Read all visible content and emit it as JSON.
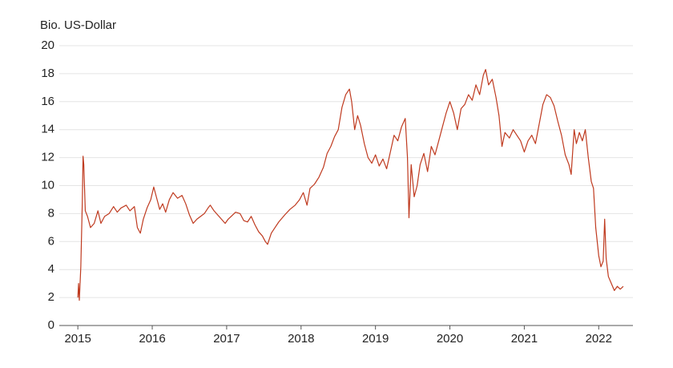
{
  "chart_data": {
    "type": "line",
    "y_axis_label": "Bio. US-Dollar",
    "x": [
      2015.0,
      2015.01,
      2015.02,
      2015.04,
      2015.06,
      2015.07,
      2015.08,
      2015.1,
      2015.13,
      2015.17,
      2015.22,
      2015.27,
      2015.31,
      2015.36,
      2015.42,
      2015.48,
      2015.53,
      2015.58,
      2015.65,
      2015.7,
      2015.76,
      2015.8,
      2015.84,
      2015.88,
      2015.93,
      2015.98,
      2016.02,
      2016.05,
      2016.1,
      2016.14,
      2016.18,
      2016.23,
      2016.28,
      2016.34,
      2016.4,
      2016.45,
      2016.5,
      2016.55,
      2016.6,
      2016.65,
      2016.7,
      2016.75,
      2016.78,
      2016.83,
      2016.88,
      2016.93,
      2016.98,
      2017.02,
      2017.08,
      2017.12,
      2017.18,
      2017.23,
      2017.28,
      2017.33,
      2017.38,
      2017.43,
      2017.48,
      2017.52,
      2017.55,
      2017.6,
      2017.65,
      2017.7,
      2017.78,
      2017.85,
      2017.92,
      2017.98,
      2018.03,
      2018.08,
      2018.12,
      2018.18,
      2018.24,
      2018.3,
      2018.35,
      2018.4,
      2018.45,
      2018.5,
      2018.55,
      2018.6,
      2018.65,
      2018.68,
      2018.72,
      2018.76,
      2018.8,
      2018.85,
      2018.9,
      2018.95,
      2019.0,
      2019.05,
      2019.1,
      2019.15,
      2019.2,
      2019.25,
      2019.3,
      2019.35,
      2019.4,
      2019.43,
      2019.45,
      2019.48,
      2019.52,
      2019.56,
      2019.6,
      2019.65,
      2019.7,
      2019.75,
      2019.8,
      2019.85,
      2019.9,
      2019.95,
      2020.0,
      2020.05,
      2020.1,
      2020.15,
      2020.2,
      2020.25,
      2020.3,
      2020.35,
      2020.4,
      2020.45,
      2020.48,
      2020.52,
      2020.57,
      2020.62,
      2020.66,
      2020.7,
      2020.74,
      2020.8,
      2020.85,
      2020.9,
      2020.95,
      2021.0,
      2021.05,
      2021.1,
      2021.15,
      2021.2,
      2021.25,
      2021.3,
      2021.35,
      2021.4,
      2021.45,
      2021.5,
      2021.55,
      2021.6,
      2021.63,
      2021.67,
      2021.7,
      2021.74,
      2021.78,
      2021.82,
      2021.86,
      2021.9,
      2021.93,
      2021.96,
      2022.0,
      2022.03,
      2022.06,
      2022.08,
      2022.1,
      2022.13,
      2022.17,
      2022.21,
      2022.25,
      2022.29,
      2022.33
    ],
    "series": [
      {
        "name": "Bio. US-Dollar",
        "color": "#bf3a1f",
        "values": [
          2.0,
          3.0,
          1.8,
          4.2,
          8.8,
          12.1,
          11.5,
          8.2,
          7.8,
          7.0,
          7.3,
          8.2,
          7.3,
          7.8,
          8.0,
          8.5,
          8.1,
          8.4,
          8.6,
          8.2,
          8.5,
          7.0,
          6.6,
          7.6,
          8.4,
          9.0,
          9.9,
          9.3,
          8.3,
          8.7,
          8.1,
          9.0,
          9.5,
          9.1,
          9.3,
          8.7,
          7.9,
          7.3,
          7.6,
          7.8,
          8.0,
          8.4,
          8.6,
          8.2,
          7.9,
          7.6,
          7.3,
          7.6,
          7.9,
          8.1,
          8.0,
          7.5,
          7.4,
          7.8,
          7.2,
          6.7,
          6.4,
          6.0,
          5.8,
          6.6,
          7.0,
          7.4,
          7.9,
          8.3,
          8.6,
          9.0,
          9.5,
          8.6,
          9.8,
          10.1,
          10.6,
          11.3,
          12.3,
          12.8,
          13.5,
          14.0,
          15.6,
          16.5,
          16.9,
          16.0,
          14.0,
          15.0,
          14.3,
          13.0,
          12.0,
          11.6,
          12.2,
          11.4,
          11.9,
          11.2,
          12.4,
          13.6,
          13.2,
          14.2,
          14.8,
          12.0,
          7.7,
          11.5,
          9.2,
          10.0,
          11.5,
          12.3,
          11.0,
          12.8,
          12.2,
          13.2,
          14.2,
          15.2,
          16.0,
          15.2,
          14.0,
          15.5,
          15.8,
          16.5,
          16.1,
          17.2,
          16.5,
          17.9,
          18.3,
          17.2,
          17.6,
          16.3,
          15.0,
          12.8,
          13.8,
          13.4,
          14.0,
          13.6,
          13.2,
          12.4,
          13.2,
          13.6,
          13.0,
          14.4,
          15.8,
          16.5,
          16.3,
          15.7,
          14.6,
          13.6,
          12.2,
          11.5,
          10.8,
          14.0,
          13.0,
          13.8,
          13.2,
          14.0,
          12.0,
          10.3,
          9.8,
          7.0,
          5.0,
          4.2,
          4.6,
          7.6,
          4.8,
          3.5,
          3.0,
          2.5,
          2.8,
          2.6,
          2.8
        ]
      }
    ],
    "xlim": [
      2014.6,
      2022.46
    ],
    "xticks": [
      2015,
      2016,
      2017,
      2018,
      2019,
      2020,
      2021,
      2022
    ],
    "ylim": [
      0,
      20
    ],
    "yticks": [
      0,
      2,
      4,
      6,
      8,
      10,
      12,
      14,
      16,
      18,
      20
    ],
    "grid": true
  }
}
